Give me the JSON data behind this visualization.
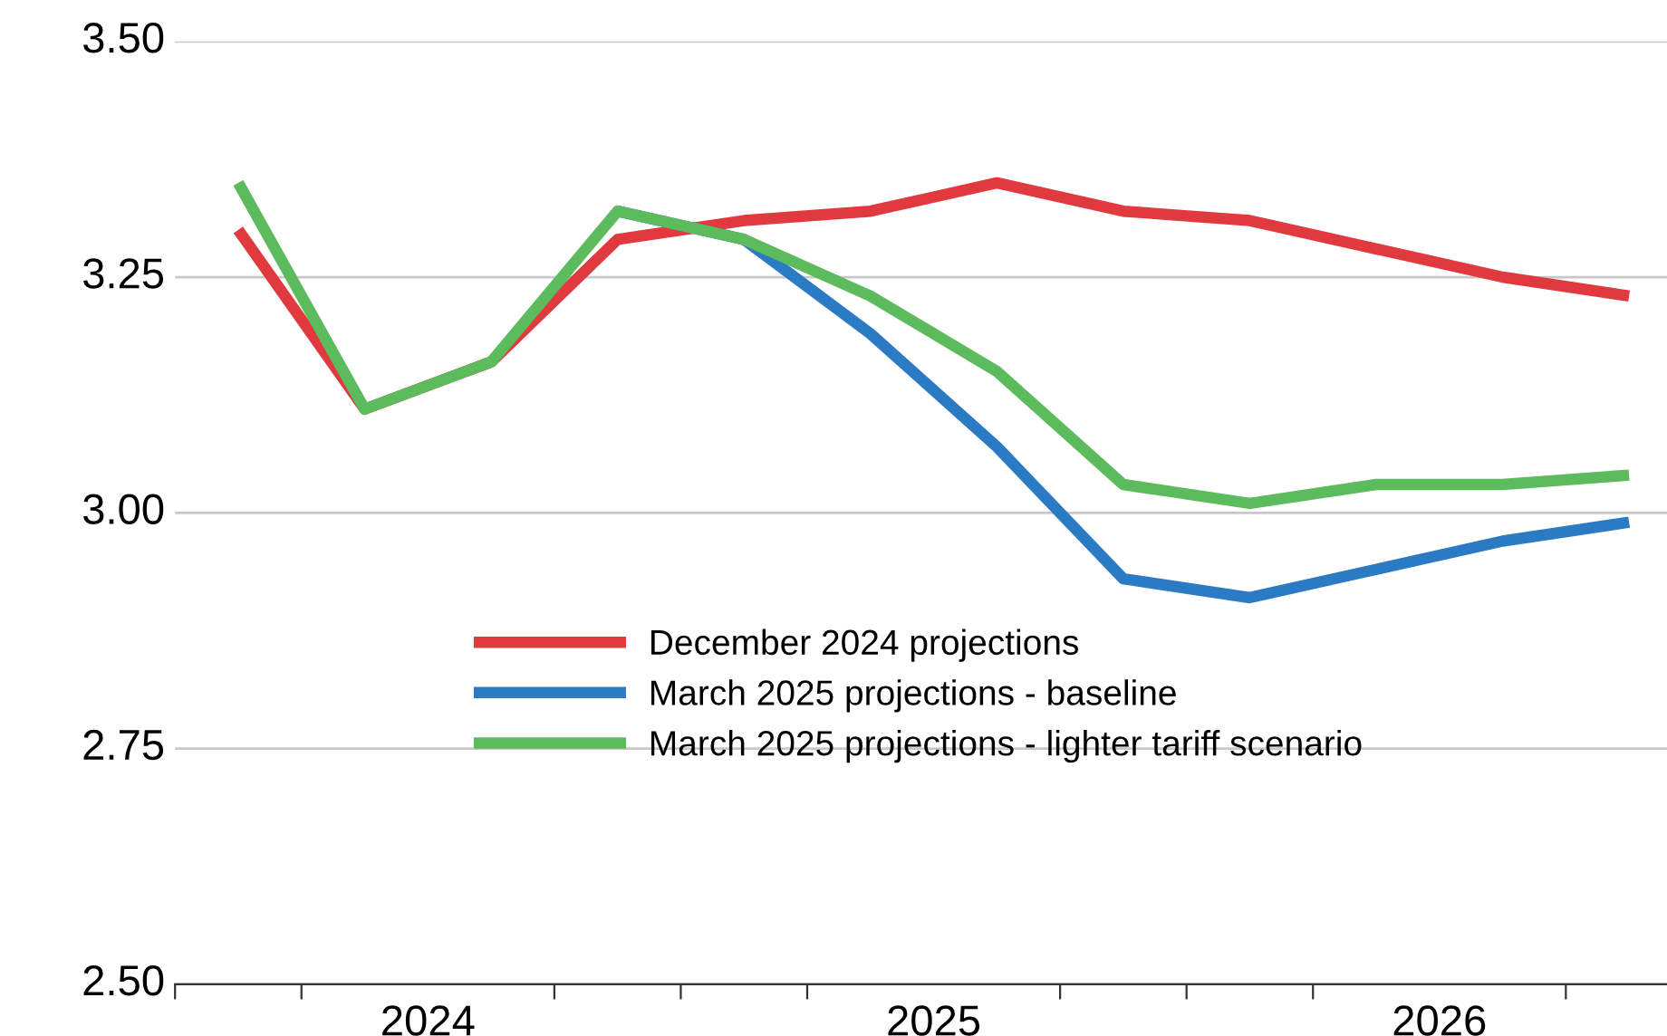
{
  "chart_data": {
    "type": "line",
    "x": [
      2024.125,
      2024.375,
      2024.625,
      2024.875,
      2025.125,
      2025.375,
      2025.625,
      2025.875,
      2026.125,
      2026.375,
      2026.625,
      2026.875
    ],
    "series": [
      {
        "name": "December 2024 projections",
        "color": "#e0393e",
        "values": [
          3.3,
          3.11,
          3.16,
          3.29,
          3.31,
          3.32,
          3.35,
          3.32,
          3.31,
          3.28,
          3.25,
          3.23
        ]
      },
      {
        "name": "March 2025 projections - baseline",
        "color": "#2b7bc4",
        "values": [
          null,
          null,
          null,
          3.32,
          3.29,
          3.19,
          3.07,
          2.93,
          2.91,
          2.94,
          2.97,
          2.99
        ]
      },
      {
        "name": "March 2025 projections - lighter tariff scenario",
        "color": "#5cbb5c",
        "values": [
          3.35,
          3.11,
          3.16,
          3.32,
          3.29,
          3.23,
          3.15,
          3.03,
          3.01,
          3.03,
          3.03,
          3.04
        ]
      }
    ],
    "xlim": [
      2024,
      2026.95
    ],
    "xticks": [
      {
        "value": 2024,
        "label": null
      },
      {
        "value": 2024.25,
        "label": null
      },
      {
        "value": 2024.5,
        "label": "2024"
      },
      {
        "value": 2024.75,
        "label": null
      },
      {
        "value": 2025,
        "label": null
      },
      {
        "value": 2025.25,
        "label": null
      },
      {
        "value": 2025.5,
        "label": "2025"
      },
      {
        "value": 2025.75,
        "label": null
      },
      {
        "value": 2026,
        "label": null
      },
      {
        "value": 2026.25,
        "label": null
      },
      {
        "value": 2026.5,
        "label": "2026"
      },
      {
        "value": 2026.75,
        "label": null
      }
    ],
    "ylim": [
      2.5,
      3.5
    ],
    "yticks": [
      {
        "value": 2.5,
        "label": "2.50"
      },
      {
        "value": 2.75,
        "label": "2.75"
      },
      {
        "value": 3.0,
        "label": "3.00"
      },
      {
        "value": 3.25,
        "label": "3.25"
      },
      {
        "value": 3.5,
        "label": "3.50"
      }
    ],
    "grid": "y",
    "legend": "bottom",
    "line_style": "solid",
    "marker": "none"
  }
}
